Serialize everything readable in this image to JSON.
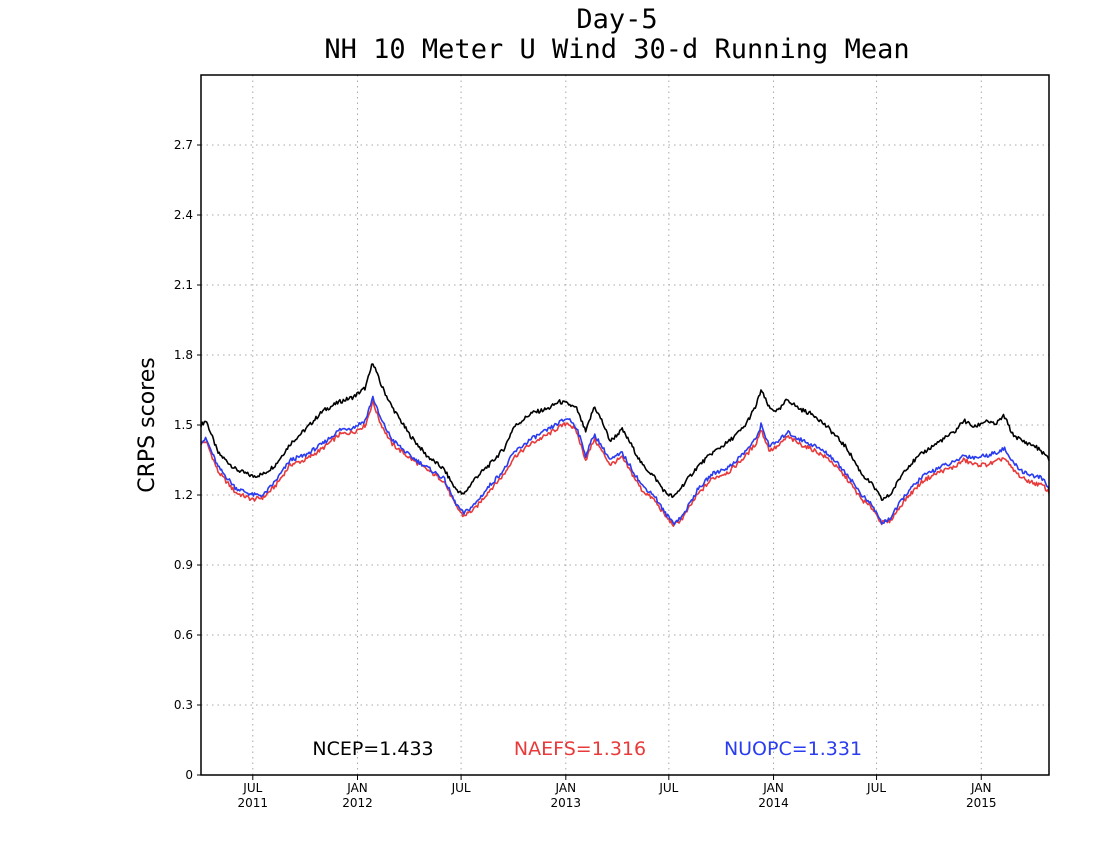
{
  "chart_data": {
    "type": "line",
    "title": "Day-5",
    "subtitle": "NH 10 Meter U Wind 30-d Running Mean",
    "ylabel": "CRPS scores",
    "xlabel": "",
    "xlim": [
      "2011-04-01",
      "2015-04-30"
    ],
    "ylim": [
      0,
      3.0
    ],
    "grid": true,
    "y_ticks": [
      0,
      0.3,
      0.6,
      0.9,
      1.2,
      1.5,
      1.8,
      2.1,
      2.4,
      2.7
    ],
    "y_tick_labels": [
      "0",
      "0.3",
      "0.6",
      "0.9",
      "1.2",
      "1.5",
      "1.8",
      "2.1",
      "2.4",
      "2.7"
    ],
    "x_ticks": [
      {
        "date": "2011-07-01",
        "month": "JUL",
        "year": "2011"
      },
      {
        "date": "2012-01-01",
        "month": "JAN",
        "year": "2012"
      },
      {
        "date": "2012-07-01",
        "month": "JUL",
        "year": ""
      },
      {
        "date": "2013-01-01",
        "month": "JAN",
        "year": "2013"
      },
      {
        "date": "2013-07-01",
        "month": "JUL",
        "year": ""
      },
      {
        "date": "2014-01-01",
        "month": "JAN",
        "year": "2014"
      },
      {
        "date": "2014-07-01",
        "month": "JUL",
        "year": ""
      },
      {
        "date": "2015-01-01",
        "month": "JAN",
        "year": "2015"
      }
    ],
    "series": [
      {
        "name": "NCEP",
        "legend_label": "NCEP=1.433",
        "color": "#000000",
        "points": [
          [
            "2011-04-01",
            1.5
          ],
          [
            "2011-04-10",
            1.52
          ],
          [
            "2011-05-01",
            1.38
          ],
          [
            "2011-06-01",
            1.31
          ],
          [
            "2011-07-01",
            1.28
          ],
          [
            "2011-07-20",
            1.29
          ],
          [
            "2011-08-10",
            1.33
          ],
          [
            "2011-09-05",
            1.42
          ],
          [
            "2011-10-01",
            1.48
          ],
          [
            "2011-11-01",
            1.56
          ],
          [
            "2011-12-01",
            1.6
          ],
          [
            "2011-12-25",
            1.62
          ],
          [
            "2012-01-15",
            1.66
          ],
          [
            "2012-01-28",
            1.77
          ],
          [
            "2012-02-10",
            1.68
          ],
          [
            "2012-03-01",
            1.58
          ],
          [
            "2012-04-01",
            1.46
          ],
          [
            "2012-05-01",
            1.37
          ],
          [
            "2012-06-01",
            1.31
          ],
          [
            "2012-06-20",
            1.23
          ],
          [
            "2012-07-05",
            1.2
          ],
          [
            "2012-07-25",
            1.27
          ],
          [
            "2012-08-20",
            1.33
          ],
          [
            "2012-09-15",
            1.4
          ],
          [
            "2012-10-01",
            1.49
          ],
          [
            "2012-11-01",
            1.55
          ],
          [
            "2012-12-01",
            1.57
          ],
          [
            "2012-12-20",
            1.6
          ],
          [
            "2013-01-05",
            1.59
          ],
          [
            "2013-01-20",
            1.57
          ],
          [
            "2013-02-05",
            1.47
          ],
          [
            "2013-02-20",
            1.58
          ],
          [
            "2013-03-05",
            1.52
          ],
          [
            "2013-03-20",
            1.43
          ],
          [
            "2013-04-10",
            1.48
          ],
          [
            "2013-04-25",
            1.42
          ],
          [
            "2013-05-15",
            1.33
          ],
          [
            "2013-06-05",
            1.28
          ],
          [
            "2013-06-25",
            1.21
          ],
          [
            "2013-07-10",
            1.19
          ],
          [
            "2013-07-25",
            1.24
          ],
          [
            "2013-08-20",
            1.32
          ],
          [
            "2013-09-15",
            1.38
          ],
          [
            "2013-10-15",
            1.43
          ],
          [
            "2013-11-10",
            1.49
          ],
          [
            "2013-12-01",
            1.58
          ],
          [
            "2013-12-10",
            1.65
          ],
          [
            "2013-12-25",
            1.57
          ],
          [
            "2014-01-10",
            1.56
          ],
          [
            "2014-01-25",
            1.61
          ],
          [
            "2014-02-15",
            1.57
          ],
          [
            "2014-03-15",
            1.54
          ],
          [
            "2014-04-10",
            1.48
          ],
          [
            "2014-05-10",
            1.4
          ],
          [
            "2014-06-05",
            1.29
          ],
          [
            "2014-06-25",
            1.24
          ],
          [
            "2014-07-10",
            1.18
          ],
          [
            "2014-07-25",
            1.2
          ],
          [
            "2014-08-20",
            1.31
          ],
          [
            "2014-09-20",
            1.38
          ],
          [
            "2014-10-20",
            1.43
          ],
          [
            "2014-11-15",
            1.47
          ],
          [
            "2014-12-01",
            1.52
          ],
          [
            "2014-12-20",
            1.49
          ],
          [
            "2015-01-10",
            1.52
          ],
          [
            "2015-01-25",
            1.5
          ],
          [
            "2015-02-10",
            1.54
          ],
          [
            "2015-02-25",
            1.46
          ],
          [
            "2015-03-15",
            1.43
          ],
          [
            "2015-04-05",
            1.41
          ],
          [
            "2015-04-20",
            1.38
          ],
          [
            "2015-04-30",
            1.35
          ]
        ]
      },
      {
        "name": "NAEFS",
        "legend_label": "NAEFS=1.316",
        "color": "#e83a3a",
        "points": [
          [
            "2011-04-01",
            1.42
          ],
          [
            "2011-04-10",
            1.43
          ],
          [
            "2011-05-01",
            1.3
          ],
          [
            "2011-06-01",
            1.21
          ],
          [
            "2011-07-01",
            1.18
          ],
          [
            "2011-07-20",
            1.19
          ],
          [
            "2011-08-10",
            1.24
          ],
          [
            "2011-09-05",
            1.33
          ],
          [
            "2011-10-01",
            1.35
          ],
          [
            "2011-11-01",
            1.4
          ],
          [
            "2011-12-01",
            1.46
          ],
          [
            "2011-12-25",
            1.47
          ],
          [
            "2012-01-15",
            1.5
          ],
          [
            "2012-01-28",
            1.6
          ],
          [
            "2012-02-10",
            1.51
          ],
          [
            "2012-03-01",
            1.42
          ],
          [
            "2012-04-01",
            1.36
          ],
          [
            "2012-05-01",
            1.31
          ],
          [
            "2012-06-01",
            1.26
          ],
          [
            "2012-06-20",
            1.16
          ],
          [
            "2012-07-05",
            1.11
          ],
          [
            "2012-07-25",
            1.14
          ],
          [
            "2012-08-20",
            1.22
          ],
          [
            "2012-09-15",
            1.29
          ],
          [
            "2012-10-01",
            1.36
          ],
          [
            "2012-11-01",
            1.42
          ],
          [
            "2012-12-01",
            1.46
          ],
          [
            "2012-12-20",
            1.49
          ],
          [
            "2013-01-05",
            1.51
          ],
          [
            "2013-01-20",
            1.47
          ],
          [
            "2013-02-05",
            1.35
          ],
          [
            "2013-02-20",
            1.44
          ],
          [
            "2013-03-05",
            1.39
          ],
          [
            "2013-03-20",
            1.33
          ],
          [
            "2013-04-10",
            1.36
          ],
          [
            "2013-04-25",
            1.3
          ],
          [
            "2013-05-15",
            1.22
          ],
          [
            "2013-06-05",
            1.18
          ],
          [
            "2013-06-25",
            1.11
          ],
          [
            "2013-07-10",
            1.07
          ],
          [
            "2013-07-25",
            1.1
          ],
          [
            "2013-08-20",
            1.2
          ],
          [
            "2013-09-15",
            1.27
          ],
          [
            "2013-10-15",
            1.3
          ],
          [
            "2013-11-10",
            1.36
          ],
          [
            "2013-12-01",
            1.42
          ],
          [
            "2013-12-10",
            1.48
          ],
          [
            "2013-12-25",
            1.39
          ],
          [
            "2014-01-10",
            1.41
          ],
          [
            "2014-01-25",
            1.45
          ],
          [
            "2014-02-15",
            1.42
          ],
          [
            "2014-03-15",
            1.39
          ],
          [
            "2014-04-10",
            1.35
          ],
          [
            "2014-05-10",
            1.27
          ],
          [
            "2014-06-05",
            1.18
          ],
          [
            "2014-06-25",
            1.14
          ],
          [
            "2014-07-10",
            1.08
          ],
          [
            "2014-07-25",
            1.09
          ],
          [
            "2014-08-20",
            1.18
          ],
          [
            "2014-09-20",
            1.26
          ],
          [
            "2014-10-20",
            1.3
          ],
          [
            "2014-11-15",
            1.32
          ],
          [
            "2014-12-01",
            1.35
          ],
          [
            "2014-12-20",
            1.33
          ],
          [
            "2015-01-10",
            1.33
          ],
          [
            "2015-01-25",
            1.34
          ],
          [
            "2015-02-10",
            1.36
          ],
          [
            "2015-02-25",
            1.31
          ],
          [
            "2015-03-15",
            1.27
          ],
          [
            "2015-04-05",
            1.25
          ],
          [
            "2015-04-20",
            1.24
          ],
          [
            "2015-04-30",
            1.21
          ]
        ]
      },
      {
        "name": "NUOPC",
        "legend_label": "NUOPC=1.331",
        "color": "#2a3cf0",
        "points": [
          [
            "2011-04-01",
            1.43
          ],
          [
            "2011-04-10",
            1.44
          ],
          [
            "2011-05-01",
            1.32
          ],
          [
            "2011-06-01",
            1.23
          ],
          [
            "2011-07-01",
            1.2
          ],
          [
            "2011-07-20",
            1.2
          ],
          [
            "2011-08-10",
            1.26
          ],
          [
            "2011-09-05",
            1.35
          ],
          [
            "2011-10-01",
            1.37
          ],
          [
            "2011-11-01",
            1.42
          ],
          [
            "2011-12-01",
            1.48
          ],
          [
            "2011-12-25",
            1.49
          ],
          [
            "2012-01-15",
            1.52
          ],
          [
            "2012-01-28",
            1.62
          ],
          [
            "2012-02-10",
            1.53
          ],
          [
            "2012-03-01",
            1.44
          ],
          [
            "2012-04-01",
            1.37
          ],
          [
            "2012-05-01",
            1.32
          ],
          [
            "2012-06-01",
            1.27
          ],
          [
            "2012-06-20",
            1.17
          ],
          [
            "2012-07-05",
            1.12
          ],
          [
            "2012-07-25",
            1.16
          ],
          [
            "2012-08-20",
            1.24
          ],
          [
            "2012-09-15",
            1.31
          ],
          [
            "2012-10-01",
            1.38
          ],
          [
            "2012-11-01",
            1.44
          ],
          [
            "2012-12-01",
            1.48
          ],
          [
            "2012-12-20",
            1.51
          ],
          [
            "2013-01-05",
            1.53
          ],
          [
            "2013-01-20",
            1.49
          ],
          [
            "2013-02-05",
            1.37
          ],
          [
            "2013-02-20",
            1.46
          ],
          [
            "2013-03-05",
            1.41
          ],
          [
            "2013-03-20",
            1.35
          ],
          [
            "2013-04-10",
            1.38
          ],
          [
            "2013-04-25",
            1.32
          ],
          [
            "2013-05-15",
            1.24
          ],
          [
            "2013-06-05",
            1.2
          ],
          [
            "2013-06-25",
            1.12
          ],
          [
            "2013-07-10",
            1.08
          ],
          [
            "2013-07-25",
            1.11
          ],
          [
            "2013-08-20",
            1.22
          ],
          [
            "2013-09-15",
            1.29
          ],
          [
            "2013-10-15",
            1.32
          ],
          [
            "2013-11-10",
            1.38
          ],
          [
            "2013-12-01",
            1.44
          ],
          [
            "2013-12-10",
            1.5
          ],
          [
            "2013-12-25",
            1.41
          ],
          [
            "2014-01-10",
            1.43
          ],
          [
            "2014-01-25",
            1.47
          ],
          [
            "2014-02-15",
            1.44
          ],
          [
            "2014-03-15",
            1.41
          ],
          [
            "2014-04-10",
            1.37
          ],
          [
            "2014-05-10",
            1.29
          ],
          [
            "2014-06-05",
            1.2
          ],
          [
            "2014-06-25",
            1.15
          ],
          [
            "2014-07-10",
            1.08
          ],
          [
            "2014-07-25",
            1.1
          ],
          [
            "2014-08-20",
            1.2
          ],
          [
            "2014-09-20",
            1.28
          ],
          [
            "2014-10-20",
            1.32
          ],
          [
            "2014-11-15",
            1.34
          ],
          [
            "2014-12-01",
            1.37
          ],
          [
            "2014-12-20",
            1.36
          ],
          [
            "2015-01-10",
            1.37
          ],
          [
            "2015-01-25",
            1.38
          ],
          [
            "2015-02-10",
            1.4
          ],
          [
            "2015-02-25",
            1.34
          ],
          [
            "2015-03-15",
            1.3
          ],
          [
            "2015-04-05",
            1.28
          ],
          [
            "2015-04-20",
            1.27
          ],
          [
            "2015-04-30",
            1.22
          ]
        ]
      }
    ]
  }
}
